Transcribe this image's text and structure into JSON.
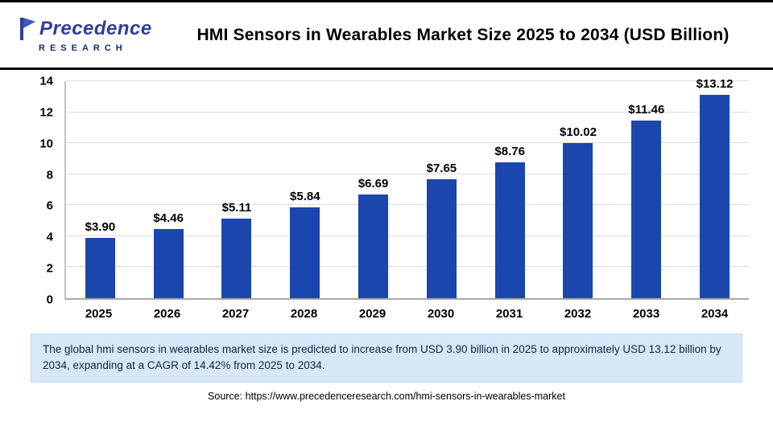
{
  "header": {
    "logo_line1": "Precedence",
    "logo_line2": "RESEARCH",
    "title": "HMI Sensors in Wearables Market Size 2025 to 2034 (USD Billion)"
  },
  "chart_data": {
    "type": "bar",
    "title": "HMI Sensors in Wearables Market Size 2025 to 2034 (USD Billion)",
    "categories": [
      "2025",
      "2026",
      "2027",
      "2028",
      "2029",
      "2030",
      "2031",
      "2032",
      "2033",
      "2034"
    ],
    "values": [
      3.9,
      4.46,
      5.11,
      5.84,
      6.69,
      7.65,
      8.76,
      10.02,
      11.46,
      13.12
    ],
    "labels": [
      "$3.90",
      "$4.46",
      "$5.11",
      "$5.84",
      "$6.69",
      "$7.65",
      "$8.76",
      "$10.02",
      "$11.46",
      "$13.12"
    ],
    "xlabel": "",
    "ylabel": "",
    "ylim": [
      0,
      14
    ],
    "yticks": [
      0,
      2,
      4,
      6,
      8,
      10,
      12,
      14
    ],
    "bar_color": "#1a46ad",
    "grid": true,
    "legend": false
  },
  "note": "The global hmi sensors in wearables market size is predicted to increase from USD 3.90 billion in 2025 to approximately USD 13.12 billion by 2034, expanding at a CAGR of 14.42% from 2025 to 2034.",
  "source": "Source: https://www.precedenceresearch.com/hmi-sensors-in-wearables-market"
}
